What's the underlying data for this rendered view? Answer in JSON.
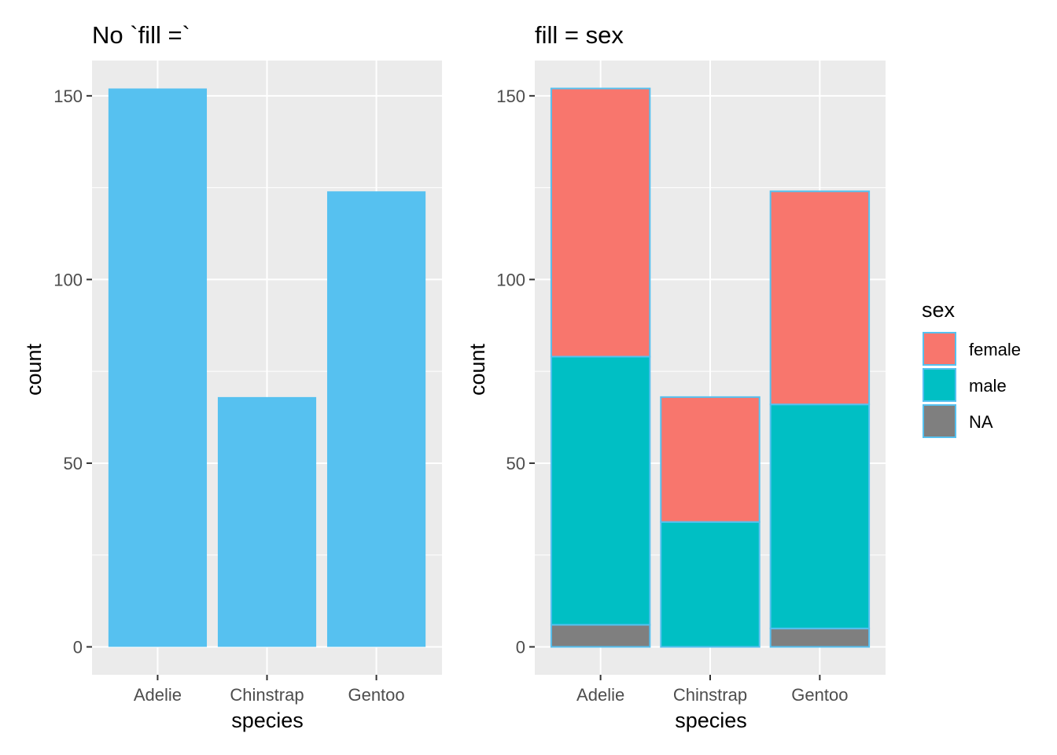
{
  "chart_data": [
    {
      "type": "bar",
      "title": "No `fill =`",
      "xlabel": "species",
      "ylabel": "count",
      "categories": [
        "Adelie",
        "Chinstrap",
        "Gentoo"
      ],
      "values": [
        152,
        68,
        124
      ],
      "ylim": [
        -7.6,
        159.6
      ],
      "yticks": [
        0,
        50,
        100,
        150
      ],
      "grid": true,
      "bar_color": "#56C1F0"
    },
    {
      "type": "bar",
      "stacked": true,
      "title": "fill = sex",
      "xlabel": "species",
      "ylabel": "count",
      "categories": [
        "Adelie",
        "Chinstrap",
        "Gentoo"
      ],
      "series": [
        {
          "name": "female",
          "values": [
            73,
            34,
            58
          ],
          "color": "#F8766D"
        },
        {
          "name": "male",
          "values": [
            73,
            34,
            61
          ],
          "color": "#00BFC4"
        },
        {
          "name": "NA",
          "values": [
            6,
            0,
            5
          ],
          "color": "#7F7F7F"
        }
      ],
      "ylim": [
        -7.6,
        159.6
      ],
      "yticks": [
        0,
        50,
        100,
        150
      ],
      "grid": true,
      "outline_color": "#56C1F0",
      "legend": {
        "title": "sex",
        "placement": "right"
      }
    }
  ]
}
